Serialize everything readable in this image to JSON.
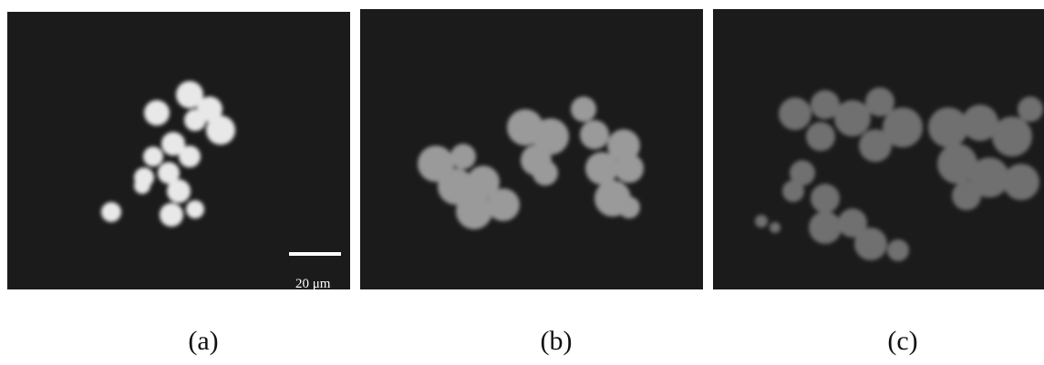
{
  "panels": [
    {
      "label": "(a)",
      "scale_bar": "20 μm"
    },
    {
      "label": "(b)"
    },
    {
      "label": "(c)"
    }
  ]
}
